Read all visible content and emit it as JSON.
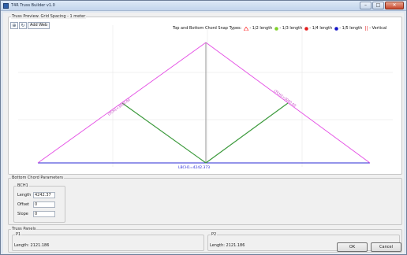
{
  "window": {
    "title": "T4R Truss Builder v1.0",
    "min_glyph": "–",
    "max_glyph": "□",
    "close_glyph": "✕"
  },
  "preview": {
    "group_title": "Truss Preview. Grid Spacing - 1 meter",
    "toolbar": {
      "zoom_glyph": "⊕",
      "pan_glyph": "↻",
      "add_web_label": "Add Web"
    },
    "legend": {
      "title": "Top and Bottom Chord Snap Types:",
      "items": [
        {
          "label": "- 1/2 length",
          "color": "#ff4040",
          "icon": "triangle-icon"
        },
        {
          "label": "- 1/3 length",
          "color": "#7fd02a",
          "icon": "circle-icon"
        },
        {
          "label": "- 1/4 length",
          "color": "#e31d1d",
          "icon": "circle-icon"
        },
        {
          "label": "- 1/5 length",
          "color": "#1515c8",
          "icon": "circle-icon"
        },
        {
          "label": "- Vertical",
          "color": "#f07070",
          "icon": "double-bar-icon"
        }
      ]
    },
    "labels": {
      "left_chord": "LTCH1=3000.00",
      "right_chord": "LTCH2=3000.00",
      "bottom_chord": "LBCH1=4242.373"
    },
    "colors": {
      "top_chord": "#e44de4",
      "bottom_chord": "#2a2ad6",
      "web": "#3c9a3c",
      "vertical": "#8a8a8a",
      "grid": "#e6e6e6"
    }
  },
  "bottom_chord_params": {
    "group_title": "Bottom Chord Parameters",
    "bch": {
      "title": "BCH1",
      "length_label": "Length",
      "length_value": "4242.37",
      "offset_label": "Offset",
      "offset_value": "0",
      "slope_label": "Slope",
      "slope_value": "0"
    }
  },
  "truss_panels": {
    "group_title": "Truss Panels",
    "p1": {
      "title": "P1",
      "text": "Length: 2121.186"
    },
    "p2": {
      "title": "P2",
      "text": "Length: 2121.186"
    }
  },
  "buttons": {
    "ok": "OK",
    "cancel": "Cancel"
  }
}
